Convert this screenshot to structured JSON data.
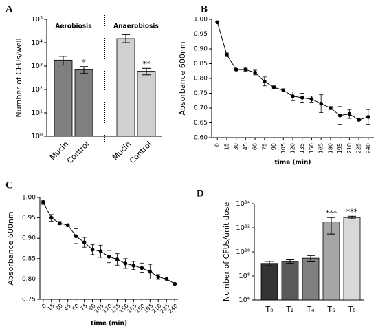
{
  "chart_data": [
    {
      "panel_label": "A",
      "type": "bar",
      "ylabel": "Number of CFUs/well",
      "log_scale": true,
      "group_labels": [
        "Aerobiosis",
        "Anaerobiosis"
      ],
      "categories": [
        "Mucin",
        "Control",
        "Mucin",
        "Control"
      ],
      "values": [
        1800,
        700,
        15000,
        600
      ],
      "error_minus": [
        700,
        220,
        5000,
        180
      ],
      "error_plus": [
        800,
        250,
        7000,
        200
      ],
      "significance": [
        null,
        "*",
        null,
        "**"
      ],
      "colors": [
        "#7f7f7f",
        "#7f7f7f",
        "#d0d0d0",
        "#d0d0d0"
      ],
      "ylim": [
        1,
        100000
      ],
      "yticks": [
        {
          "value": 1,
          "label": "10⁰"
        },
        {
          "value": 10,
          "label": "10¹"
        },
        {
          "value": 100,
          "label": "10²"
        },
        {
          "value": 1000,
          "label": "10³"
        },
        {
          "value": 10000,
          "label": "10⁴"
        },
        {
          "value": 100000,
          "label": "10⁵"
        }
      ]
    },
    {
      "panel_label": "B",
      "type": "line",
      "ylabel": "Absorbance 600nm",
      "xlabel": "time (min)",
      "color": "#000000",
      "x": [
        0,
        15,
        30,
        45,
        60,
        75,
        90,
        105,
        120,
        135,
        150,
        165,
        180,
        195,
        210,
        225,
        240
      ],
      "values": [
        0.99,
        0.88,
        0.83,
        0.83,
        0.82,
        0.79,
        0.77,
        0.76,
        0.74,
        0.735,
        0.73,
        0.715,
        0.7,
        0.675,
        0.68,
        0.66,
        0.67
      ],
      "errors": [
        0.003,
        0.006,
        0.003,
        0.005,
        0.008,
        0.015,
        0.005,
        0.005,
        0.015,
        0.015,
        0.01,
        0.03,
        0.005,
        0.03,
        0.015,
        0.003,
        0.025
      ],
      "xlim": [
        -9,
        249
      ],
      "xticks": [
        0,
        15,
        30,
        45,
        60,
        75,
        90,
        105,
        120,
        135,
        150,
        165,
        180,
        195,
        210,
        225,
        240
      ],
      "ylim": [
        0.6,
        1.0
      ],
      "yticks": [
        {
          "value": 0.6,
          "label": "0.60"
        },
        {
          "value": 0.65,
          "label": "0.65"
        },
        {
          "value": 0.7,
          "label": "0.70"
        },
        {
          "value": 0.75,
          "label": "0.75"
        },
        {
          "value": 0.8,
          "label": "0.80"
        },
        {
          "value": 0.85,
          "label": "0.85"
        },
        {
          "value": 0.9,
          "label": "0.90"
        },
        {
          "value": 0.95,
          "label": "0.95"
        },
        {
          "value": 1.0,
          "label": "1.00"
        }
      ]
    },
    {
      "panel_label": "C",
      "type": "line",
      "ylabel": "Absorbance 600nm",
      "xlabel": "time (min)",
      "color": "#000000",
      "x": [
        0,
        15,
        30,
        45,
        60,
        75,
        90,
        105,
        120,
        135,
        150,
        165,
        180,
        195,
        210,
        225,
        240
      ],
      "values": [
        0.988,
        0.95,
        0.937,
        0.932,
        0.905,
        0.89,
        0.872,
        0.868,
        0.855,
        0.848,
        0.838,
        0.833,
        0.827,
        0.818,
        0.805,
        0.8,
        0.788
      ],
      "errors": [
        0.005,
        0.008,
        0.004,
        0.003,
        0.018,
        0.012,
        0.012,
        0.015,
        0.015,
        0.014,
        0.012,
        0.01,
        0.012,
        0.018,
        0.006,
        0.005,
        0.002
      ],
      "xlim": [
        -6,
        246
      ],
      "xticks": [
        0,
        15,
        30,
        45,
        60,
        75,
        90,
        105,
        120,
        135,
        150,
        165,
        180,
        195,
        210,
        225,
        240
      ],
      "ylim": [
        0.75,
        1.0
      ],
      "yticks": [
        {
          "value": 0.75,
          "label": "0.75"
        },
        {
          "value": 0.8,
          "label": "0.80"
        },
        {
          "value": 0.85,
          "label": "0.85"
        },
        {
          "value": 0.9,
          "label": "0.90"
        },
        {
          "value": 0.95,
          "label": "0.95"
        },
        {
          "value": 1.0,
          "label": "1.00"
        }
      ]
    },
    {
      "panel_label": "D",
      "type": "bar",
      "ylabel": "Number of CFUs/unit dose",
      "log_scale": true,
      "categories": [
        "T₀",
        "T₂",
        "T₄",
        "T₆",
        "T₈"
      ],
      "values": [
        1100000000,
        1600000000,
        3000000000,
        3000000000000,
        7000000000000
      ],
      "error_minus": [
        400000000,
        500000000,
        1500000000,
        2700000000000,
        1500000000000
      ],
      "error_plus": [
        500000000,
        600000000,
        2000000000,
        4000000000000,
        2000000000000
      ],
      "significance": [
        null,
        null,
        null,
        "***",
        "***"
      ],
      "colors": [
        "#333333",
        "#5a5a5a",
        "#808080",
        "#a6a6a6",
        "#d9d9d9"
      ],
      "ylim": [
        1000000,
        100000000000000
      ],
      "yticks": [
        {
          "value": 1000000,
          "label": "10⁶"
        },
        {
          "value": 100000000,
          "label": "10⁸"
        },
        {
          "value": 10000000000,
          "label": "10¹⁰"
        },
        {
          "value": 1000000000000,
          "label": "10¹²"
        },
        {
          "value": 100000000000000,
          "label": "10¹⁴"
        }
      ]
    }
  ]
}
